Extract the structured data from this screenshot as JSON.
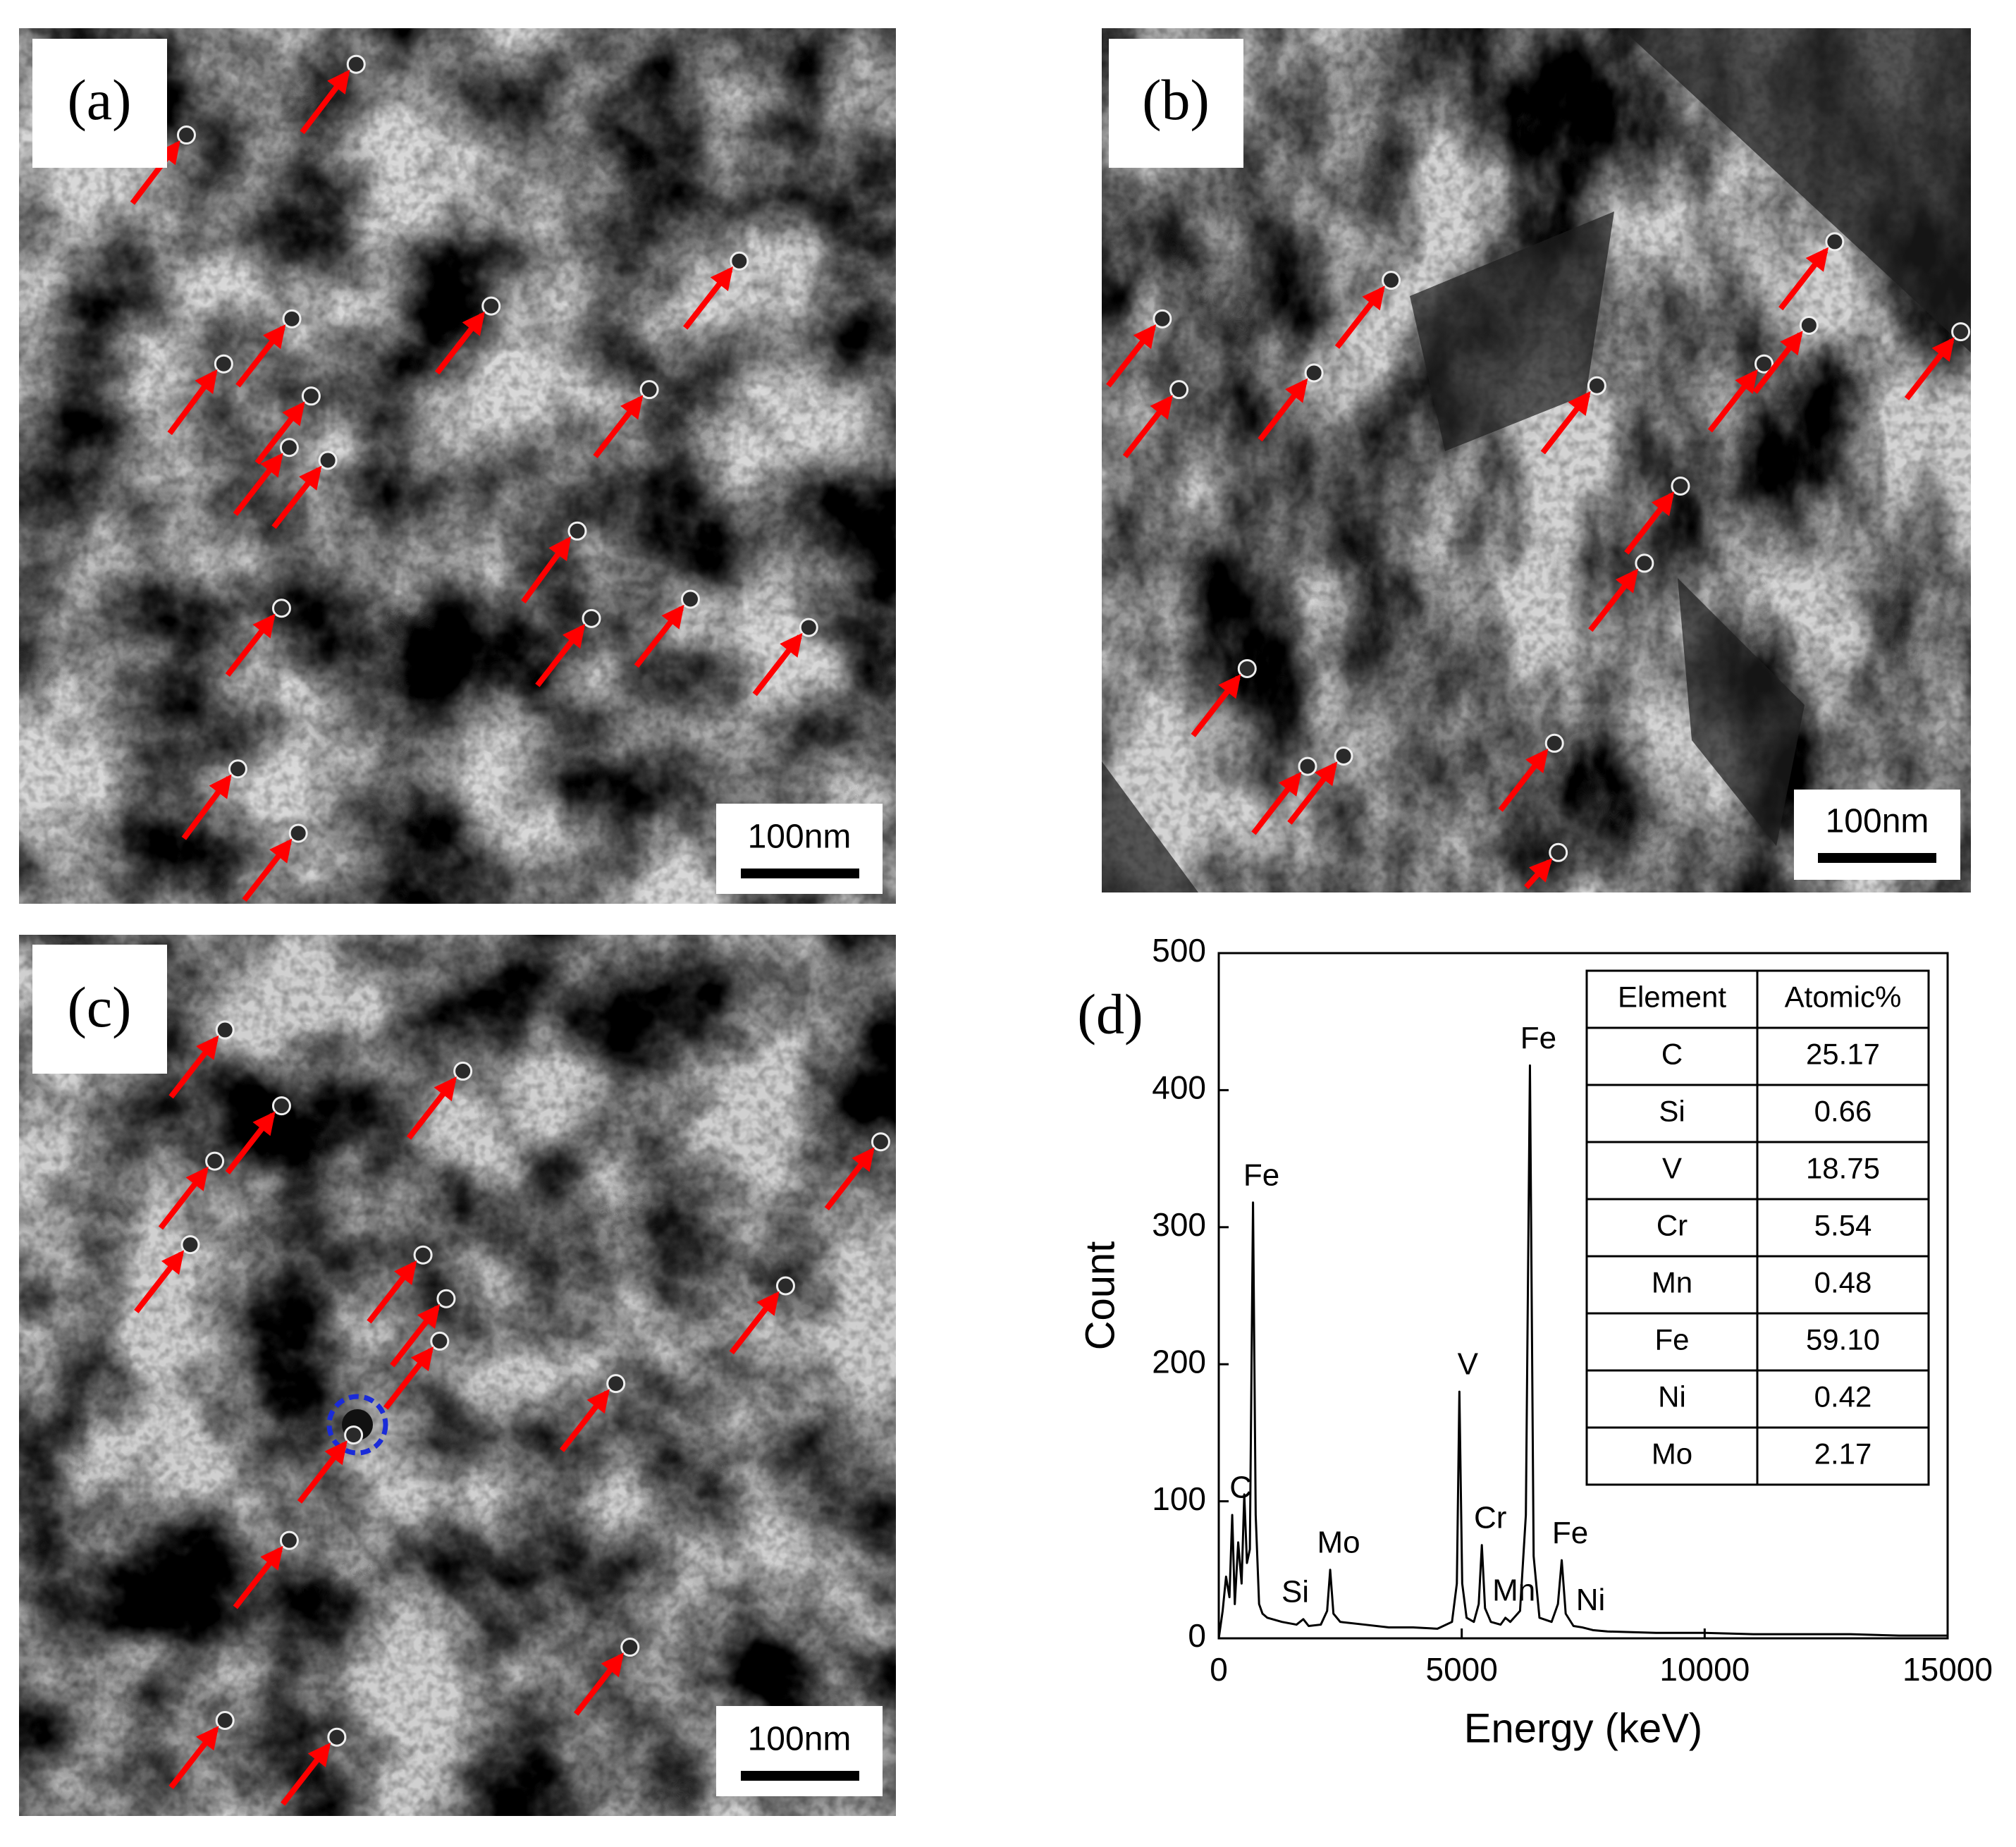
{
  "panels": [
    {
      "label": "(a)",
      "scale_bar": "100nm"
    },
    {
      "label": "(b)",
      "scale_bar": "100nm"
    },
    {
      "label": "(c)",
      "scale_bar": "100nm"
    }
  ],
  "chart_data": {
    "type": "line",
    "label": "(d)",
    "x_label": "Energy (keV)",
    "y_label": "Count",
    "xlim": [
      0,
      15000
    ],
    "ylim": [
      0,
      500
    ],
    "xticks": [
      0,
      5000,
      10000,
      15000
    ],
    "yticks": [
      0,
      100,
      200,
      300,
      400,
      500
    ],
    "series": [
      {
        "color": "#000000",
        "x": [
          0,
          80,
          150,
          220,
          277,
          330,
          400,
          470,
          525,
          580,
          640,
          705,
          760,
          830,
          900,
          1000,
          1300,
          1600,
          1740,
          1850,
          2100,
          2230,
          2293,
          2360,
          2500,
          3000,
          3500,
          4000,
          4500,
          4800,
          4900,
          4952,
          5010,
          5100,
          5250,
          5350,
          5414,
          5480,
          5600,
          5800,
          5899,
          6000,
          6200,
          6320,
          6404,
          6480,
          6600,
          6850,
          6980,
          7058,
          7140,
          7300,
          7478,
          7700,
          8000,
          9000,
          10000,
          11000,
          12000,
          13000,
          14000,
          15000
        ],
        "values": [
          0,
          20,
          45,
          30,
          90,
          25,
          70,
          40,
          105,
          55,
          65,
          318,
          90,
          25,
          18,
          15,
          12,
          10,
          14,
          9,
          10,
          20,
          50,
          18,
          12,
          10,
          8,
          8,
          7,
          12,
          40,
          180,
          40,
          15,
          12,
          25,
          68,
          22,
          12,
          10,
          15,
          12,
          20,
          90,
          418,
          60,
          15,
          12,
          25,
          57,
          18,
          9,
          8,
          6,
          5,
          4,
          4,
          3,
          3,
          3,
          2,
          2
        ]
      }
    ],
    "annotations": [
      {
        "text": "C",
        "x": 277,
        "y": 90
      },
      {
        "text": "Fe",
        "x": 705,
        "y": 318
      },
      {
        "text": "Si",
        "x": 1400,
        "y": 14
      },
      {
        "text": "Mo",
        "x": 2293,
        "y": 50
      },
      {
        "text": "V",
        "x": 4952,
        "y": 180
      },
      {
        "text": "Cr",
        "x": 5414,
        "y": 68
      },
      {
        "text": "Mn",
        "x": 5899,
        "y": 15
      },
      {
        "text": "Fe",
        "x": 6404,
        "y": 418
      },
      {
        "text": "Fe",
        "x": 7058,
        "y": 57
      },
      {
        "text": "Ni",
        "x": 7478,
        "y": 8
      }
    ],
    "table": {
      "header": [
        "Element",
        "Atomic%"
      ],
      "rows": [
        [
          "C",
          "25.17"
        ],
        [
          "Si",
          "0.66"
        ],
        [
          "V",
          "18.75"
        ],
        [
          "Cr",
          "5.54"
        ],
        [
          "Mn",
          "0.48"
        ],
        [
          "Fe",
          "59.10"
        ],
        [
          "Ni",
          "0.42"
        ],
        [
          "Mo",
          "2.17"
        ]
      ]
    }
  }
}
